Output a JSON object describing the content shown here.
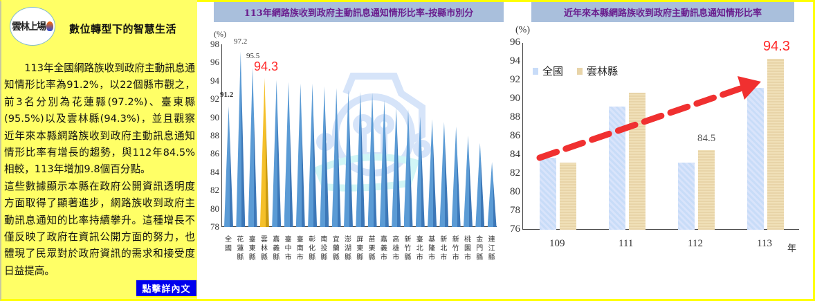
{
  "left_panel": {
    "logo_text": "雲林上場",
    "title": "數位轉型下的智慧生活",
    "paragraphs": [
      "113年全國網路族收到政府主動訊息通知情形比率為91.2%，以22個縣市觀之，前3名分別為花蓮縣(97.2%)、臺東縣(95.5%)以及雲林縣(94.3%)，並且觀察近年來本縣網路族收到政府主動訊息通知情形比率有增長的趨勢，與112年84.5%相較，113年增加9.8個百分點。",
      "這些數據顯示本縣在政府公開資訊透明度方面取得了顯著進步，網路族收到政府主動訊息通知的比率持續攀升。這種增長不僅反映了政府在資訊公開方面的努力，也體現了民眾對於政府資訊的需求和接受度日益提高。"
    ],
    "read_more_label": "點擊詳內文"
  },
  "colors": {
    "panel_bg": "#ffff66",
    "frame": "#ffff00",
    "title_bg": "#a9bfdc",
    "title_text": "#6a1e8e",
    "bar_blue": "#5b9bd5",
    "bar_highlight": "#f5c02a",
    "highlight_text": "#ff2a2a",
    "button_bg": "#0000ee"
  },
  "chart_data": [
    {
      "type": "bar",
      "title": "113年網路族收到政府主動訊息通知情形比率-按縣市別分",
      "ylabel": "(%)",
      "xlabel": "",
      "ylim": [
        78,
        98
      ],
      "yticks": [
        78,
        80,
        82,
        84,
        86,
        88,
        90,
        92,
        94,
        96,
        98
      ],
      "categories": [
        "全國",
        "花蓮縣",
        "臺東縣",
        "雲林縣",
        "嘉義縣",
        "臺中市",
        "臺南市",
        "彰化縣",
        "南投縣",
        "宜蘭縣",
        "澎湖縣",
        "屏東縣",
        "苗栗縣",
        "嘉義市",
        "高雄市",
        "新竹縣",
        "臺北市",
        "基隆市",
        "新北市",
        "新竹市",
        "桃園市",
        "金門縣",
        "連江縣"
      ],
      "values": [
        91.2,
        97.2,
        95.5,
        94.3,
        94.1,
        93.9,
        93.7,
        93.7,
        93.4,
        93.2,
        93.0,
        92.8,
        92.7,
        91.9,
        91.1,
        90.9,
        90.1,
        89.8,
        89.5,
        89.0,
        88.0,
        87.2,
        85.1
      ],
      "data_labels": {
        "全國": "91.2",
        "花蓮縣": "97.2",
        "臺東縣": "95.5",
        "雲林縣": "94.3"
      },
      "highlight": "雲林縣"
    },
    {
      "type": "bar",
      "title": "近年來本縣網路族收到政府主動訊息通知情形比率",
      "ylabel": "(%)",
      "xlabel": "年",
      "ylim": [
        76,
        96
      ],
      "yticks": [
        76,
        78,
        80,
        82,
        84,
        86,
        88,
        90,
        92,
        94,
        96
      ],
      "categories": [
        "109",
        "111",
        "112",
        "113"
      ],
      "series": [
        {
          "name": "全國",
          "values": [
            83.7,
            89.2,
            83.2,
            91.2
          ]
        },
        {
          "name": "雲林縣",
          "values": [
            83.2,
            90.7,
            84.5,
            94.3
          ]
        }
      ],
      "data_labels": {
        "112-雲林縣": "84.5",
        "113-雲林縣": "94.3"
      },
      "legend_position": "upper-left",
      "annotation": "red dashed trend arrow rising from 109 to 113"
    }
  ]
}
